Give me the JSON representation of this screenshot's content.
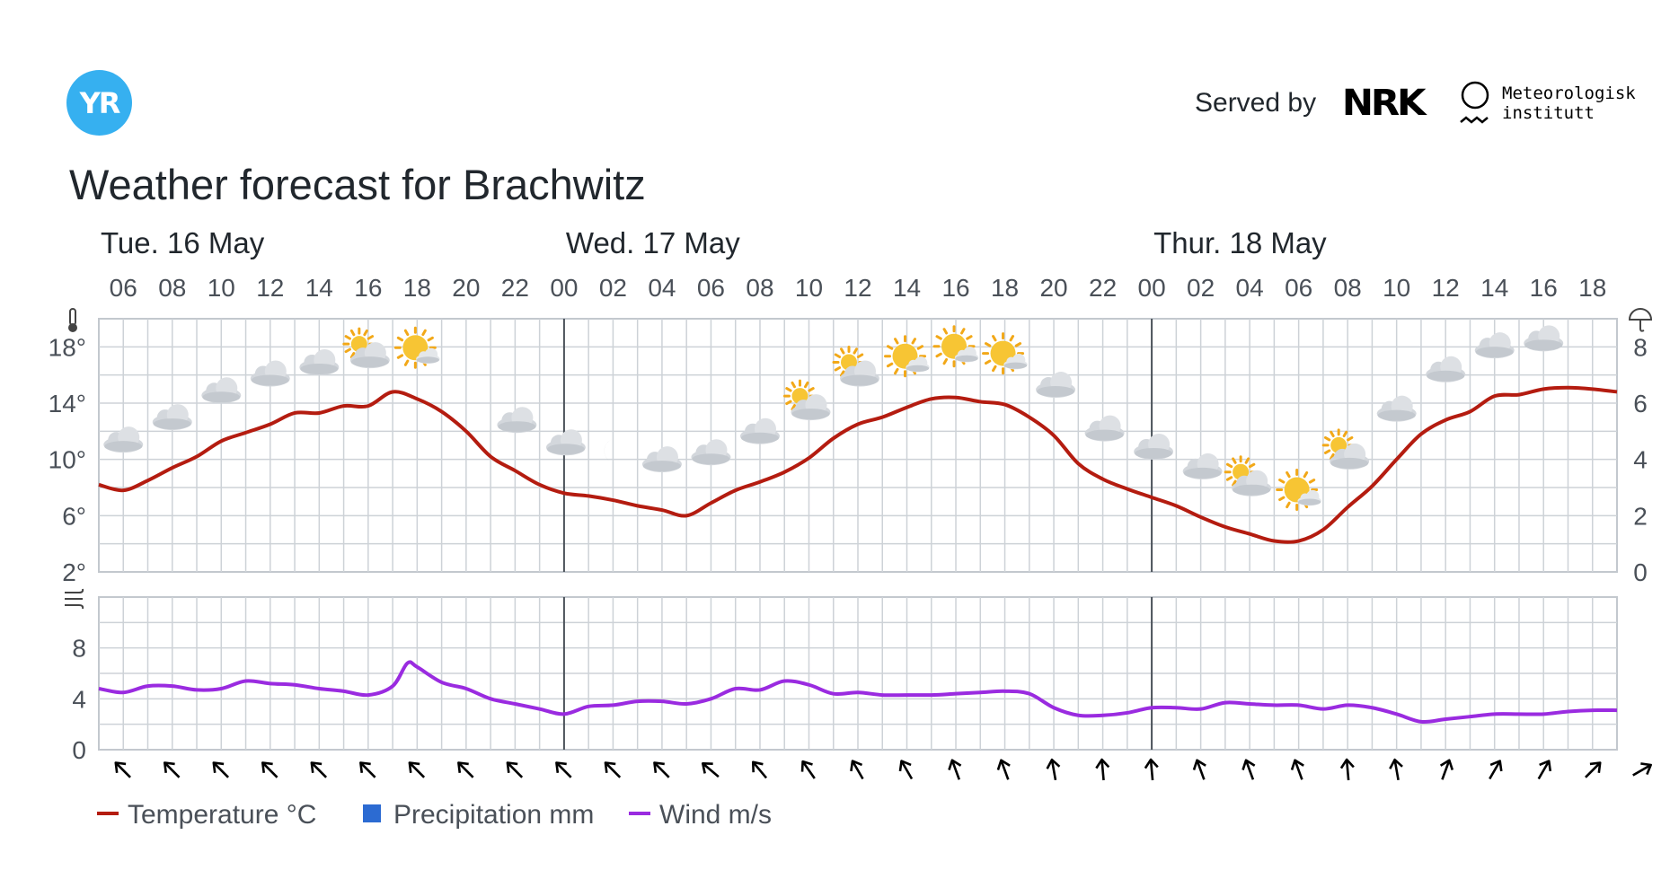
{
  "header": {
    "logo_text": "YR",
    "served_by": "Served by",
    "nrk_logo": "NRK",
    "met_line1": "Meteorologisk",
    "met_line2": "institutt"
  },
  "title": "Weather forecast for Brachwitz",
  "chart_data": {
    "type": "line",
    "start_hour": 5,
    "end_hour": 67,
    "days": [
      {
        "label": "Tue. 16 May",
        "start_hour": 5
      },
      {
        "label": "Wed. 17 May",
        "start_hour": 24
      },
      {
        "label": "Thur. 18 May",
        "start_hour": 48
      }
    ],
    "hour_ticks": [
      "06",
      "08",
      "10",
      "12",
      "14",
      "16",
      "18",
      "20",
      "22",
      "00",
      "02",
      "04",
      "06",
      "08",
      "10",
      "12",
      "14",
      "16",
      "18",
      "20",
      "22",
      "00",
      "02",
      "04",
      "06",
      "08",
      "10",
      "12",
      "14",
      "16",
      "18"
    ],
    "temperature_axis": {
      "ticks": [
        "18°",
        "14°",
        "10°",
        "6°",
        "2°"
      ],
      "ylim": [
        2,
        20
      ]
    },
    "precipitation_axis": {
      "ticks": [
        "8",
        "6",
        "4",
        "2",
        "0"
      ],
      "ylim": [
        0,
        9
      ]
    },
    "wind_axis": {
      "ticks": [
        "8",
        "4",
        "0"
      ],
      "ylim": [
        0,
        12
      ]
    },
    "series": [
      {
        "name": "Temperature °C",
        "color": "#b41c10",
        "x": [
          5,
          6,
          7,
          8,
          9,
          10,
          11,
          12,
          13,
          14,
          15,
          16,
          17,
          18,
          19,
          20,
          21,
          22,
          23,
          24,
          25,
          26,
          27,
          28,
          29,
          30,
          31,
          32,
          33,
          34,
          35,
          36,
          37,
          38,
          39,
          40,
          41,
          42,
          43,
          44,
          45,
          46,
          47,
          48,
          49,
          50,
          51,
          52,
          53,
          54,
          55,
          56,
          57,
          58,
          59,
          60,
          61,
          62,
          63,
          64,
          65,
          66,
          67
        ],
        "y": [
          8.2,
          7.8,
          8.5,
          9.4,
          10.2,
          11.3,
          11.9,
          12.5,
          13.3,
          13.3,
          13.8,
          13.8,
          14.8,
          14.3,
          13.4,
          12.0,
          10.2,
          9.2,
          8.2,
          7.6,
          7.4,
          7.1,
          6.7,
          6.4,
          6.0,
          6.9,
          7.8,
          8.4,
          9.1,
          10.1,
          11.5,
          12.5,
          13.0,
          13.7,
          14.3,
          14.4,
          14.1,
          13.9,
          13.0,
          11.7,
          9.7,
          8.6,
          7.9,
          7.3,
          6.7,
          5.9,
          5.2,
          4.7,
          4.2,
          4.2,
          5.0,
          6.6,
          8.1,
          10.0,
          11.8,
          12.8,
          13.4,
          14.5,
          14.6,
          15.0,
          15.1,
          15.0,
          14.8
        ]
      },
      {
        "name": "Precipitation mm",
        "color": "#2c6bd2",
        "values": []
      },
      {
        "name": "Wind m/s",
        "color": "#9a2be0",
        "x": [
          5,
          6,
          7,
          8,
          9,
          10,
          11,
          12,
          13,
          14,
          15,
          16,
          17,
          17.6,
          18,
          19,
          20,
          21,
          22,
          23,
          24,
          25,
          26,
          27,
          28,
          29,
          30,
          31,
          32,
          33,
          34,
          35,
          36,
          37,
          38,
          39,
          40,
          41,
          42,
          43,
          44,
          45,
          46,
          47,
          48,
          49,
          50,
          51,
          52,
          53,
          54,
          55,
          56,
          57,
          58,
          59,
          60,
          61,
          62,
          63,
          64,
          65,
          66,
          67
        ],
        "y": [
          4.8,
          4.5,
          5.0,
          5.0,
          4.7,
          4.8,
          5.4,
          5.2,
          5.1,
          4.8,
          4.6,
          4.3,
          5.0,
          6.8,
          6.5,
          5.3,
          4.8,
          4.0,
          3.6,
          3.2,
          2.8,
          3.4,
          3.5,
          3.8,
          3.8,
          3.6,
          4.0,
          4.8,
          4.7,
          5.4,
          5.1,
          4.4,
          4.5,
          4.3,
          4.3,
          4.3,
          4.4,
          4.5,
          4.6,
          4.4,
          3.3,
          2.7,
          2.7,
          2.9,
          3.3,
          3.3,
          3.2,
          3.7,
          3.6,
          3.5,
          3.5,
          3.2,
          3.5,
          3.3,
          2.8,
          2.2,
          2.4,
          2.6,
          2.8,
          2.8,
          2.8,
          3.0,
          3.1,
          3.1
        ]
      }
    ],
    "weather_icons": [
      {
        "x": 6,
        "icon": "cloudy"
      },
      {
        "x": 8,
        "icon": "cloudy"
      },
      {
        "x": 10,
        "icon": "cloudy"
      },
      {
        "x": 12,
        "icon": "cloudy"
      },
      {
        "x": 14,
        "icon": "cloudy"
      },
      {
        "x": 16,
        "icon": "partly-cloudy-day"
      },
      {
        "x": 18,
        "icon": "fair-day"
      },
      {
        "x": 20,
        "icon": "clear-night"
      },
      {
        "x": 22,
        "icon": "partly-cloudy-night"
      },
      {
        "x": 24,
        "icon": "partly-cloudy-night"
      },
      {
        "x": 26,
        "icon": "clear-night"
      },
      {
        "x": 28,
        "icon": "cloudy"
      },
      {
        "x": 30,
        "icon": "cloudy"
      },
      {
        "x": 32,
        "icon": "cloudy"
      },
      {
        "x": 34,
        "icon": "partly-cloudy-day"
      },
      {
        "x": 36,
        "icon": "partly-cloudy-day"
      },
      {
        "x": 38,
        "icon": "fair-day"
      },
      {
        "x": 40,
        "icon": "fair-day"
      },
      {
        "x": 42,
        "icon": "fair-day"
      },
      {
        "x": 44,
        "icon": "partly-cloudy-night"
      },
      {
        "x": 46,
        "icon": "partly-cloudy-night"
      },
      {
        "x": 48,
        "icon": "partly-cloudy-night"
      },
      {
        "x": 50,
        "icon": "partly-cloudy-night"
      },
      {
        "x": 52,
        "icon": "partly-cloudy-day"
      },
      {
        "x": 54,
        "icon": "fair-day"
      },
      {
        "x": 56,
        "icon": "partly-cloudy-day"
      },
      {
        "x": 58,
        "icon": "cloudy"
      },
      {
        "x": 60,
        "icon": "cloudy"
      },
      {
        "x": 62,
        "icon": "cloudy"
      },
      {
        "x": 64,
        "icon": "cloudy"
      }
    ],
    "wind_directions_deg": [
      315,
      315,
      315,
      315,
      315,
      315,
      315,
      315,
      315,
      315,
      315,
      315,
      310,
      320,
      325,
      330,
      330,
      340,
      340,
      350,
      355,
      355,
      340,
      340,
      340,
      355,
      350,
      20,
      30,
      30,
      45,
      60
    ],
    "grid": true,
    "legend_position": "bottom-left"
  }
}
